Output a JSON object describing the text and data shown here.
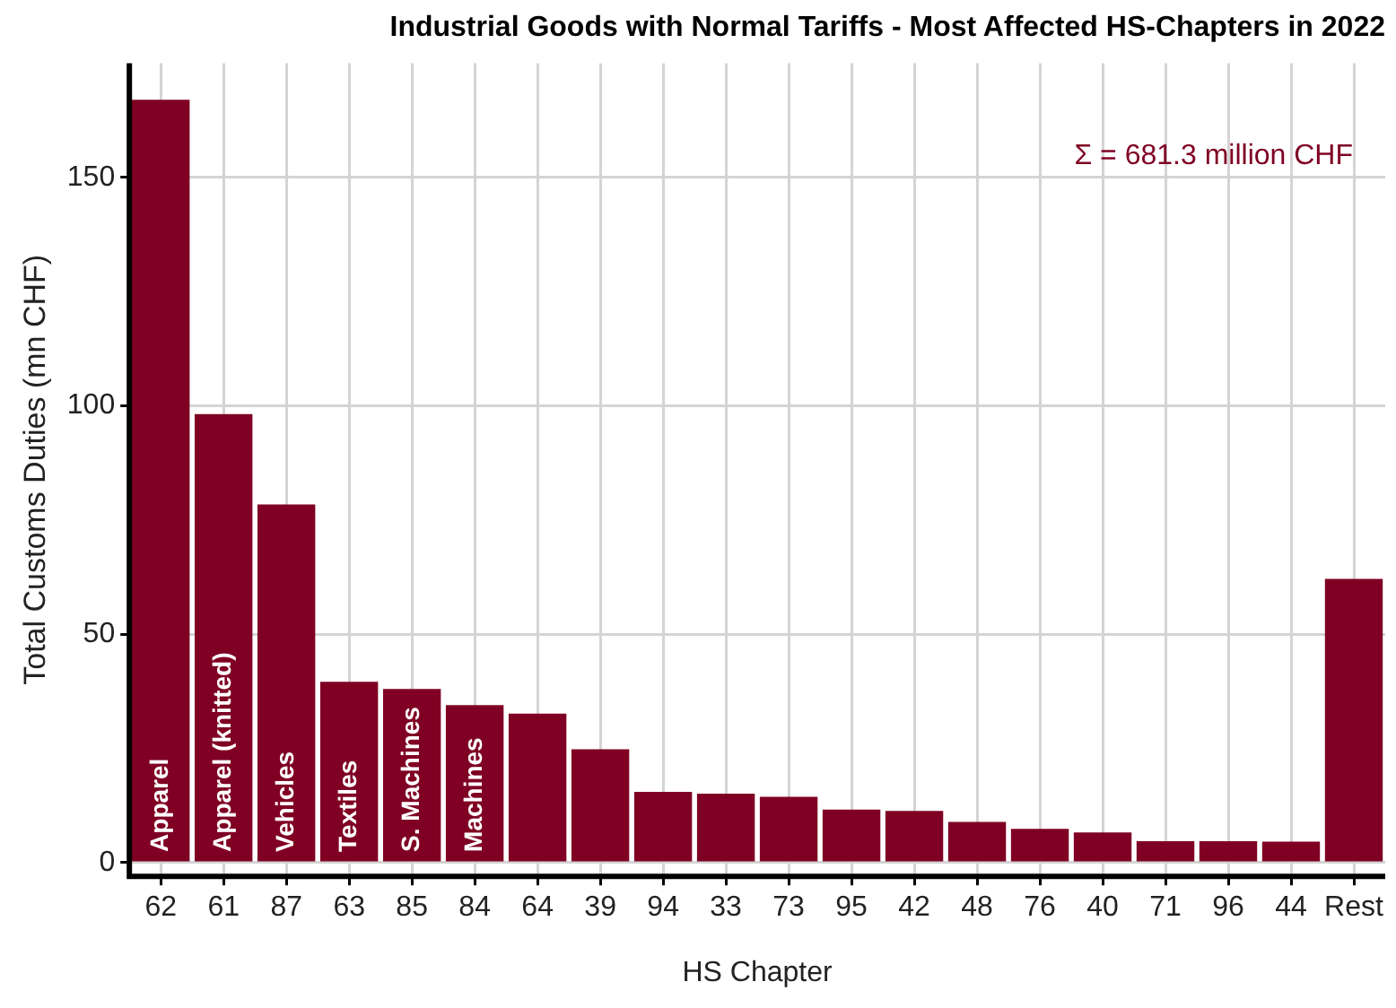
{
  "chart_data": {
    "type": "bar",
    "title": "Industrial Goods with Normal Tariffs - Most Affected HS-Chapters in 2022",
    "xlabel": "HS Chapter",
    "ylabel": "Total Customs Duties (mn CHF)",
    "categories": [
      "62",
      "61",
      "87",
      "63",
      "85",
      "84",
      "64",
      "39",
      "94",
      "33",
      "73",
      "95",
      "42",
      "48",
      "76",
      "40",
      "71",
      "96",
      "44",
      "Rest"
    ],
    "values": [
      167,
      98.2,
      78.4,
      39.6,
      38.0,
      34.5,
      32.6,
      24.8,
      15.5,
      15.1,
      14.4,
      11.6,
      11.3,
      8.9,
      7.4,
      6.6,
      4.7,
      4.7,
      4.6,
      62.1
    ],
    "color": "#7f0023",
    "ylim": [
      -3,
      175
    ],
    "yticks": [
      0,
      50,
      100,
      150
    ],
    "grid": true,
    "legend": false,
    "annotations": [
      "Σ = 681.3 million CHF",
      {
        "text": "Apparel",
        "x": "62",
        "y": 0
      },
      {
        "text": "Apparel (knitted)",
        "x": "61",
        "y": 0
      },
      {
        "text": "Vehicles",
        "x": "87",
        "y": 0
      },
      {
        "text": "Textiles",
        "x": "63",
        "y": 0
      },
      {
        "text": "S. Machines",
        "x": "85",
        "y": 0
      },
      {
        "text": "Machines",
        "x": "84",
        "y": 0
      }
    ]
  }
}
